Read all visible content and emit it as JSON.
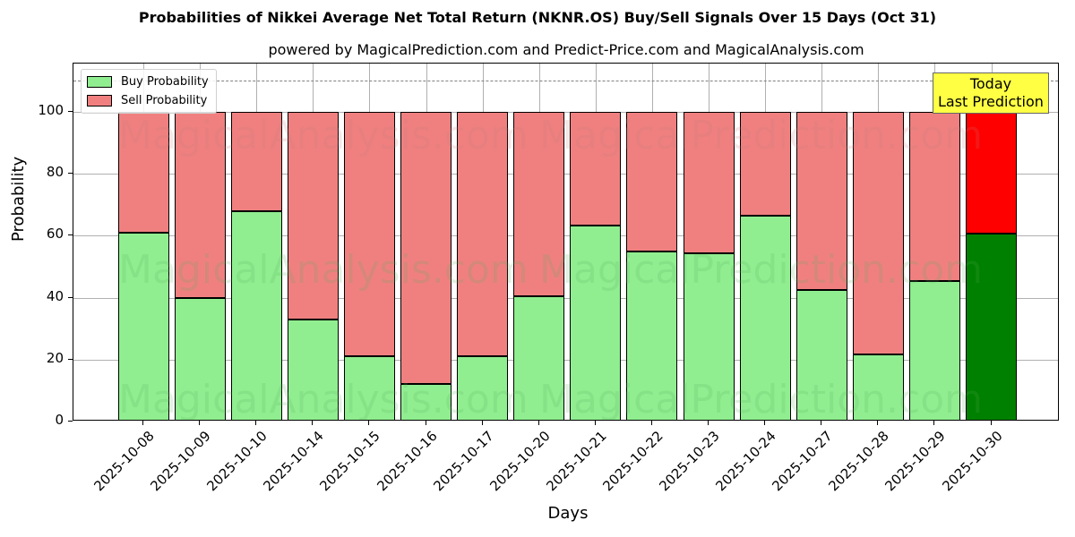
{
  "chart_data": {
    "type": "bar",
    "stacked": true,
    "title": "Probabilities of Nikkei Average Net Total Return (NKNR.OS) Buy/Sell Signals Over 15 Days (Oct 31)",
    "subtitle": "powered by MagicalPrediction.com and Predict-Price.com and MagicalAnalysis.com",
    "xlabel": "Days",
    "ylabel": "Probability",
    "ylim": [
      0,
      115
    ],
    "yticks": [
      0,
      20,
      40,
      60,
      80,
      100
    ],
    "grid": true,
    "legend_position": "upper left",
    "reference_line": {
      "y": 110,
      "style": "dashed",
      "color": "#808080"
    },
    "categories": [
      "2025-10-08",
      "2025-10-09",
      "2025-10-10",
      "2025-10-14",
      "2025-10-15",
      "2025-10-16",
      "2025-10-17",
      "2025-10-20",
      "2025-10-21",
      "2025-10-22",
      "2025-10-23",
      "2025-10-24",
      "2025-10-27",
      "2025-10-28",
      "2025-10-29",
      "2025-10-30"
    ],
    "series": [
      {
        "name": "Buy Probability",
        "color": "#90ee90",
        "values": [
          61,
          40,
          68,
          33,
          21,
          12,
          21,
          40.5,
          63.3,
          55,
          54.3,
          66.5,
          42.5,
          21.7,
          45.4,
          60.7
        ]
      },
      {
        "name": "Sell Probability",
        "color": "#f08080",
        "values": [
          39,
          60,
          32,
          67,
          79,
          88,
          79,
          59.5,
          36.7,
          45,
          45.7,
          33.5,
          57.5,
          78.3,
          54.6,
          39.3
        ]
      }
    ],
    "highlight": {
      "category": "2025-10-30",
      "buy_color": "#008000",
      "sell_color": "#ff0000"
    },
    "annotation": {
      "text_line1": "Today",
      "text_line2": "Last Prediction",
      "background": "#ffff44"
    },
    "watermarks": [
      "MagicalAnalysis.com",
      "MagicalPrediction.com"
    ]
  },
  "legend": {
    "buy": "Buy Probability",
    "sell": "Sell Probability"
  }
}
